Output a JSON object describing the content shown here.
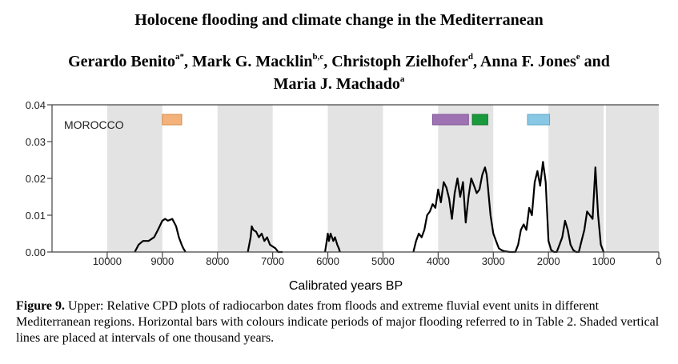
{
  "paper": {
    "title": "Holocene flooding and climate change in the Mediterranean",
    "authors": [
      {
        "name": "Gerardo Benito",
        "aff": "a*",
        "sep": ", "
      },
      {
        "name": "Mark G. Macklin",
        "aff": "b,c",
        "sep": ", "
      },
      {
        "name": "Christoph Zielhofer",
        "aff": "d",
        "sep": ", "
      },
      {
        "name": "Anna F. Jones",
        "aff": "e",
        "sep": " and "
      },
      {
        "name": "Maria J. Machado",
        "aff": "a",
        "sep": ""
      }
    ]
  },
  "caption": {
    "label": "Figure 9.",
    "text": " Upper: Relative CPD plots of radiocarbon dates from floods and extreme fluvial event units in different Mediterranean regions.  Horizontal bars with colours indicate periods of major flooding referred to in Table 2.  Shaded vertical lines are placed at intervals of one thousand years."
  },
  "chart_data": {
    "type": "line",
    "panel_label": "MOROCCO",
    "xlabel": "Calibrated years BP",
    "ylabel": "",
    "xlim": [
      11000,
      0
    ],
    "x_reversed": true,
    "ylim": [
      0,
      0.04
    ],
    "x_ticks": [
      10000,
      9000,
      8000,
      7000,
      6000,
      5000,
      4000,
      3000,
      2000,
      1000,
      0
    ],
    "x_tick_labels": [
      "10000",
      "9000",
      "8000",
      "7000",
      "6000",
      "5000",
      "4000",
      "3000",
      "2000",
      "1000",
      "0"
    ],
    "y_ticks": [
      0.0,
      0.01,
      0.02,
      0.03,
      0.04
    ],
    "y_tick_labels": [
      "0.00",
      "0.01",
      "0.02",
      "0.03",
      "0.04"
    ],
    "grid": false,
    "shaded_intervals": [
      [
        10000,
        9000
      ],
      [
        8000,
        7000
      ],
      [
        6000,
        5000
      ],
      [
        4000,
        3000
      ],
      [
        2000,
        1000
      ]
    ],
    "flood_bars": [
      {
        "from": 9000,
        "to": 8650,
        "color": "#f2b27a",
        "border": "#d98b45"
      },
      {
        "from": 4100,
        "to": 3450,
        "color": "#9e72b3",
        "border": "#7e5596"
      },
      {
        "from": 3380,
        "to": 3100,
        "color": "#1a9a3c",
        "border": "#0f7a2a"
      },
      {
        "from": 2380,
        "to": 1980,
        "color": "#89c8e4",
        "border": "#5aa6c8"
      }
    ],
    "series": [
      {
        "color": "#000000",
        "x": [
          9500,
          9430,
          9350,
          9250,
          9150,
          9080,
          9000,
          8950,
          8900,
          8820,
          8750,
          8700,
          8650,
          8620,
          8580,
          7450,
          7400,
          7380,
          7350,
          7300,
          7250,
          7200,
          7150,
          7100,
          7050,
          6950,
          6900,
          6820,
          6050,
          6020,
          6000,
          5980,
          5950,
          5900,
          5870,
          5830,
          5800,
          5780,
          4450,
          4400,
          4350,
          4300,
          4250,
          4200,
          4150,
          4100,
          4050,
          4000,
          3950,
          3900,
          3850,
          3800,
          3750,
          3700,
          3650,
          3600,
          3550,
          3500,
          3450,
          3400,
          3350,
          3300,
          3250,
          3200,
          3150,
          3120,
          3100,
          3050,
          3000,
          2950,
          2900,
          2850,
          2800,
          2750,
          2700,
          2650,
          2600,
          2550,
          2500,
          2450,
          2400,
          2350,
          2300,
          2250,
          2200,
          2150,
          2100,
          2050,
          2000,
          1950,
          1900,
          1850,
          1800,
          1750,
          1700,
          1650,
          1600,
          1550,
          1500,
          1450,
          1400,
          1350,
          1300,
          1250,
          1200,
          1150,
          1100,
          1050,
          1000
        ],
        "y": [
          0.0,
          0.002,
          0.003,
          0.003,
          0.004,
          0.006,
          0.0085,
          0.009,
          0.0085,
          0.009,
          0.007,
          0.004,
          0.002,
          0.001,
          0.0,
          0.0,
          0.004,
          0.007,
          0.006,
          0.0055,
          0.004,
          0.005,
          0.003,
          0.004,
          0.002,
          0.001,
          0.0,
          0.0,
          0.0,
          0.003,
          0.005,
          0.003,
          0.005,
          0.003,
          0.004,
          0.002,
          0.001,
          0.0,
          0.0,
          0.003,
          0.005,
          0.004,
          0.006,
          0.01,
          0.011,
          0.013,
          0.012,
          0.017,
          0.0135,
          0.019,
          0.0175,
          0.0145,
          0.009,
          0.016,
          0.02,
          0.015,
          0.019,
          0.008,
          0.015,
          0.02,
          0.018,
          0.016,
          0.017,
          0.021,
          0.023,
          0.021,
          0.018,
          0.01,
          0.005,
          0.003,
          0.001,
          0.0005,
          0.0002,
          0.0001,
          0.0,
          0.0,
          0.0,
          0.002,
          0.006,
          0.0075,
          0.006,
          0.012,
          0.01,
          0.019,
          0.022,
          0.018,
          0.0245,
          0.019,
          0.003,
          0.0005,
          0.0,
          0.0,
          0.002,
          0.004,
          0.0085,
          0.006,
          0.002,
          0.0005,
          0.0,
          0.0,
          0.003,
          0.006,
          0.011,
          0.01,
          0.009,
          0.023,
          0.01,
          0.002,
          0.0
        ]
      }
    ]
  }
}
